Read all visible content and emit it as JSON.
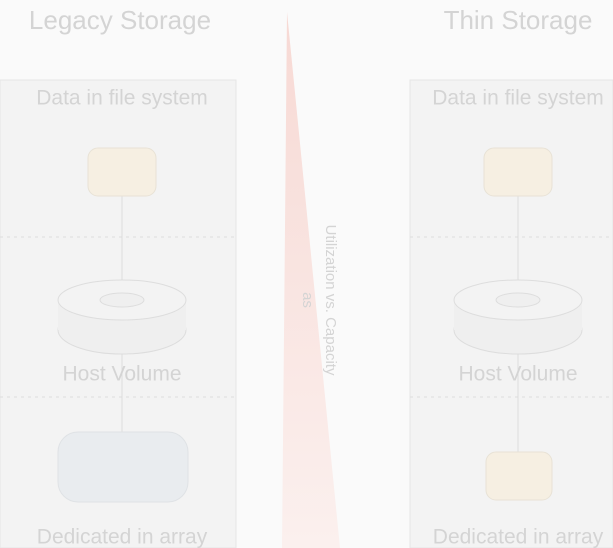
{
  "header": {
    "left_title": "Legacy Storage",
    "right_title": "Thin Storage"
  },
  "left": {
    "top_label": "Data in file system",
    "middle_label": "Host Volume",
    "bottom_label": "Dedicated in array"
  },
  "right": {
    "top_label": "Data in file system",
    "middle_label": "Host Volume",
    "bottom_label": "Dedicated in array"
  },
  "center": {
    "line1": "Utilization vs. Capacity",
    "line2": "as"
  }
}
